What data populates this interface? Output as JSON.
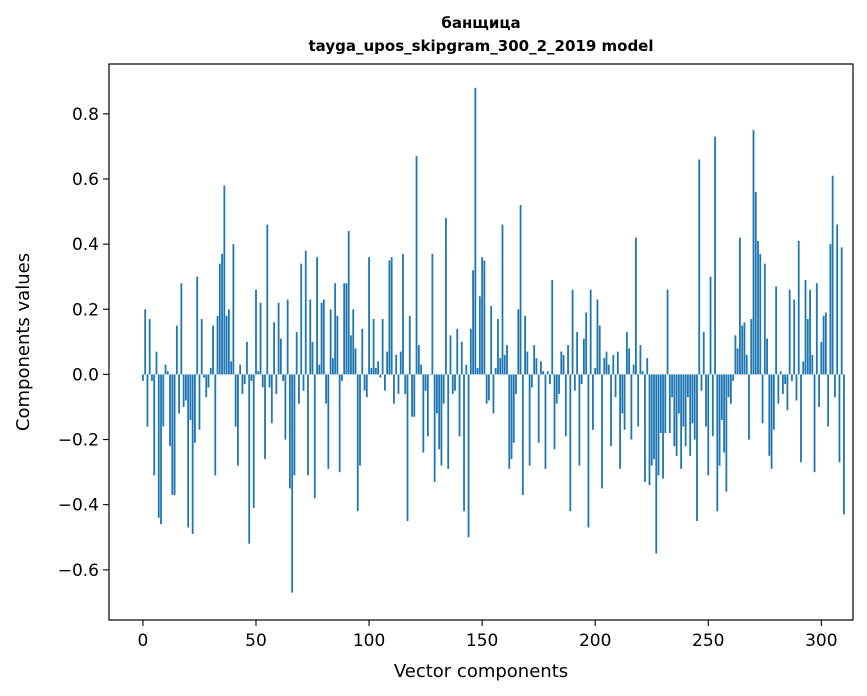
{
  "chart_data": {
    "type": "bar",
    "title": "банщица",
    "subtitle": "tayga_upos_skipgram_300_2_2019 model",
    "xlabel": "Vector components",
    "ylabel": "Components values",
    "xlim": [
      -15,
      314
    ],
    "ylim": [
      -0.754,
      0.953
    ],
    "xticks": [
      0,
      50,
      100,
      150,
      200,
      250,
      300
    ],
    "xtick_labels": [
      "0",
      "50",
      "100",
      "150",
      "200",
      "250",
      "300"
    ],
    "yticks": [
      -0.6,
      -0.4,
      -0.2,
      0.0,
      0.2,
      0.4,
      0.6,
      0.8
    ],
    "ytick_labels": [
      "−0.6",
      "−0.4",
      "−0.2",
      "0.0",
      "0.2",
      "0.4",
      "0.6",
      "0.8"
    ],
    "grid": false,
    "bar_color": "#1f77b4",
    "values": [
      -0.02,
      0.2,
      -0.16,
      0.17,
      -0.02,
      -0.31,
      0.07,
      -0.44,
      -0.46,
      -0.16,
      0.03,
      0.01,
      -0.22,
      -0.37,
      -0.37,
      0.15,
      -0.12,
      0.28,
      -0.1,
      -0.08,
      -0.47,
      -0.14,
      -0.49,
      -0.21,
      0.3,
      -0.17,
      0.17,
      -0.01,
      -0.07,
      -0.04,
      0.02,
      0.15,
      -0.31,
      0.18,
      0.34,
      0.37,
      0.58,
      0.18,
      0.2,
      0.04,
      0.4,
      -0.16,
      -0.28,
      0.03,
      -0.06,
      -0.03,
      0.1,
      -0.52,
      -0.02,
      -0.41,
      0.26,
      0.01,
      0.22,
      -0.04,
      -0.26,
      0.46,
      -0.04,
      -0.15,
      0.16,
      -0.06,
      0.22,
      0.11,
      -0.02,
      -0.2,
      0.23,
      -0.35,
      -0.67,
      -0.31,
      0.13,
      -0.09,
      0.34,
      -0.05,
      0.38,
      -0.31,
      0.23,
      0.1,
      -0.38,
      0.36,
      0.03,
      0.22,
      0.23,
      -0.09,
      -0.29,
      0.2,
      0.05,
      0.28,
      0.18,
      -0.3,
      -0.02,
      0.28,
      0.28,
      0.44,
      0.12,
      0.2,
      0.08,
      -0.42,
      -0.28,
      0.14,
      -0.05,
      -0.07,
      0.36,
      0.02,
      0.17,
      0.02,
      0.04,
      -0.01,
      0.17,
      -0.05,
      0.07,
      0.35,
      0.36,
      -0.09,
      0.06,
      -0.06,
      0.07,
      0.37,
      -0.06,
      -0.45,
      0.18,
      -0.13,
      -0.13,
      0.67,
      0.09,
      0.03,
      -0.24,
      -0.05,
      -0.19,
      0.0,
      0.37,
      -0.33,
      -0.12,
      -0.23,
      -0.28,
      -0.09,
      0.48,
      -0.29,
      0.12,
      -0.06,
      -0.05,
      0.14,
      -0.19,
      0.1,
      -0.42,
      0.03,
      -0.5,
      0.14,
      0.32,
      0.88,
      0.02,
      0.24,
      0.36,
      0.35,
      -0.09,
      -0.08,
      0.21,
      -0.12,
      0.02,
      0.17,
      0.05,
      0.46,
      0.06,
      0.09,
      -0.29,
      -0.26,
      -0.21,
      -0.06,
      0.2,
      0.52,
      -0.37,
      0.18,
      0.07,
      -0.28,
      -0.04,
      0.09,
      0.05,
      -0.21,
      0.04,
      0.01,
      -0.29,
      0.01,
      -0.03,
      0.29,
      -0.23,
      -0.09,
      -0.06,
      0.07,
      0.06,
      -0.19,
      0.09,
      -0.42,
      0.26,
      -0.05,
      0.13,
      -0.28,
      -0.03,
      0.11,
      0.19,
      -0.47,
      0.26,
      -0.17,
      0.02,
      0.23,
      0.15,
      -0.35,
      0.05,
      0.07,
      0.03,
      -0.22,
      0.06,
      -0.07,
      0.07,
      -0.29,
      -0.12,
      -0.17,
      0.13,
      0.08,
      -0.2,
      0.03,
      0.42,
      -0.16,
      0.09,
      0.01,
      -0.33,
      0.05,
      -0.34,
      -0.28,
      -0.26,
      -0.55,
      -0.31,
      -0.18,
      -0.32,
      -0.18,
      0.26,
      -0.18,
      -0.07,
      -0.22,
      -0.25,
      -0.12,
      -0.29,
      -0.16,
      -0.22,
      -0.07,
      -0.25,
      -0.15,
      -0.2,
      -0.45,
      0.66,
      -0.05,
      0.13,
      -0.16,
      -0.31,
      0.3,
      -0.19,
      0.73,
      -0.42,
      -0.28,
      -0.14,
      -0.24,
      -0.36,
      -0.07,
      -0.09,
      -0.02,
      0.12,
      0.08,
      0.42,
      0.15,
      0.16,
      0.06,
      -0.2,
      0.17,
      0.75,
      0.56,
      0.41,
      0.37,
      -0.15,
      0.34,
      0.11,
      -0.25,
      -0.29,
      -0.17,
      0.27,
      -0.09,
      0.01,
      -0.06,
      -0.03,
      -0.11,
      0.26,
      -0.02,
      0.23,
      -0.08,
      0.41,
      -0.27,
      0.04,
      0.29,
      0.17,
      0.26,
      0.06,
      -0.3,
      0.28,
      -0.1,
      0.1,
      0.18,
      0.19,
      -0.16,
      0.4,
      0.61,
      -0.07,
      0.46,
      -0.27,
      0.39,
      -0.43
    ]
  }
}
